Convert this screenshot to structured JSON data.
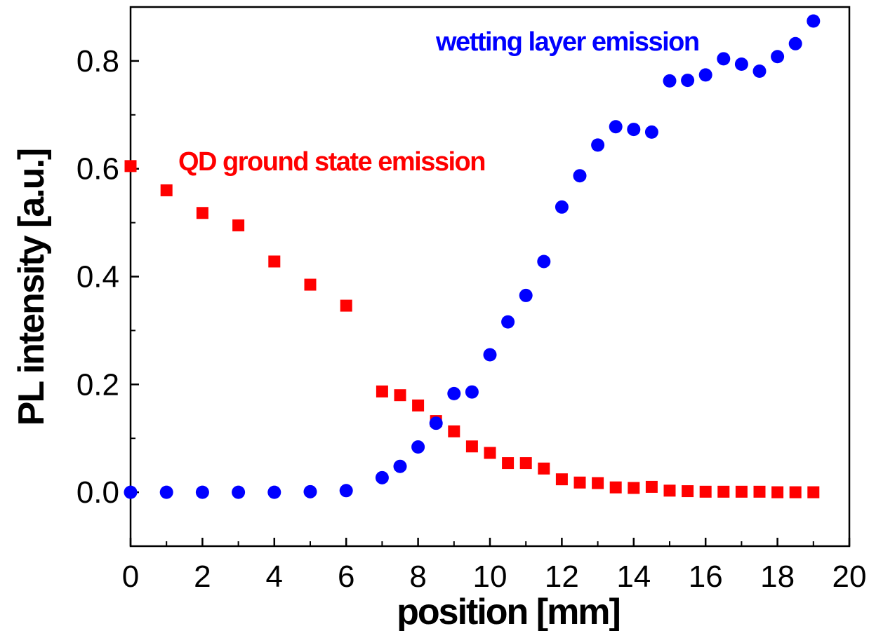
{
  "chart_data": {
    "type": "scatter",
    "xlabel": "position [mm]",
    "ylabel": "PL intensity [a.u.]",
    "xlim": [
      0,
      20
    ],
    "ylim": [
      -0.1,
      0.9
    ],
    "xticks": [
      0,
      2,
      4,
      6,
      8,
      10,
      12,
      14,
      16,
      18,
      20
    ],
    "xtick_labels": [
      "0",
      "2",
      "4",
      "6",
      "8",
      "10",
      "12",
      "14",
      "16",
      "18",
      "20"
    ],
    "yticks": [
      0.0,
      0.2,
      0.4,
      0.6,
      0.8
    ],
    "ytick_labels": [
      "0.0",
      "0.2",
      "0.4",
      "0.6",
      "0.8"
    ],
    "grid": false,
    "legend": "none",
    "annotations": [
      {
        "text": "QD ground state emission",
        "series": "qd",
        "color": "#ff0000"
      },
      {
        "text": "wetting layer emission",
        "series": "wl",
        "color": "#0000ff"
      }
    ],
    "series": [
      {
        "id": "qd",
        "marker": "square",
        "color": "#ff0000",
        "x": [
          0,
          1,
          2,
          3,
          4,
          5,
          6,
          7,
          7.5,
          8,
          8.5,
          9,
          9.5,
          10,
          10.5,
          11,
          11.5,
          12,
          12.5,
          13,
          13.5,
          14,
          14.5,
          15,
          15.5,
          16,
          16.5,
          17,
          17.5,
          18,
          18.5,
          19
        ],
        "y": [
          0.605,
          0.56,
          0.518,
          0.495,
          0.428,
          0.385,
          0.346,
          0.187,
          0.18,
          0.161,
          0.132,
          0.113,
          0.085,
          0.073,
          0.054,
          0.054,
          0.044,
          0.024,
          0.018,
          0.017,
          0.009,
          0.008,
          0.01,
          0.003,
          0.002,
          0.001,
          0.001,
          0.001,
          0.001,
          0.0,
          0.0,
          0.0
        ]
      },
      {
        "id": "wl",
        "marker": "circle",
        "color": "#0000ff",
        "x": [
          0,
          1,
          2,
          3,
          4,
          5,
          6,
          7,
          7.5,
          8,
          8.5,
          9,
          9.5,
          10,
          10.5,
          11,
          11.5,
          12,
          12.5,
          13,
          13.5,
          14,
          14.5,
          15,
          15.5,
          16,
          16.5,
          17,
          17.5,
          18,
          18.5,
          19
        ],
        "y": [
          0.0,
          0.0,
          0.0,
          0.0,
          0.0,
          0.001,
          0.003,
          0.027,
          0.048,
          0.084,
          0.128,
          0.183,
          0.186,
          0.255,
          0.316,
          0.365,
          0.428,
          0.529,
          0.587,
          0.644,
          0.678,
          0.673,
          0.668,
          0.763,
          0.764,
          0.774,
          0.804,
          0.794,
          0.781,
          0.808,
          0.832,
          0.874
        ]
      }
    ]
  }
}
